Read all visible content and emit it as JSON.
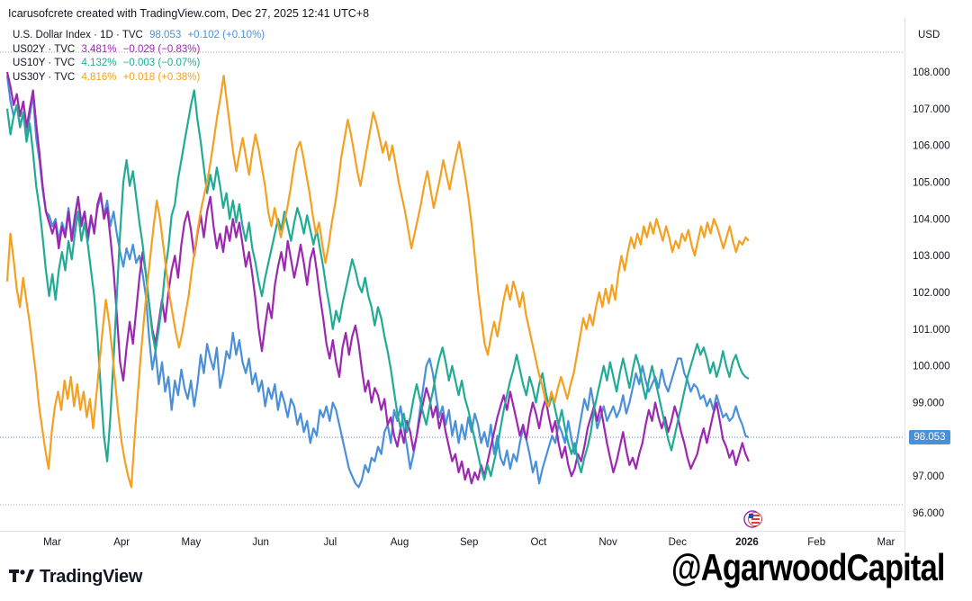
{
  "header": {
    "text": "Icarusofcrete created with TradingView.com, Dec 27, 2025 12:41 UTC+8"
  },
  "legend": [
    {
      "name": "U.S. Dollar Index · 1D · TVC",
      "value": "98.053",
      "change": "+0.102 (+0.10%)",
      "color": "#4a90d9"
    },
    {
      "name": "US02Y · TVC",
      "value": "3.481%",
      "change": "−0.029 (−0.83%)",
      "color": "#9c27b0"
    },
    {
      "name": "US10Y · TVC",
      "value": "4.132%",
      "change": "−0.003 (−0.07%)",
      "color": "#22ab94"
    },
    {
      "name": "US30Y · TVC",
      "value": "4.816%",
      "change": "+0.018 (+0.38%)",
      "color": "#f4a020"
    }
  ],
  "axis": {
    "currency": "USD",
    "price_label": "98.053"
  },
  "branding": {
    "logo_text": "TradingView",
    "watermark": "@AgarwoodCapital"
  },
  "chart_data": {
    "type": "line",
    "x_labels": [
      "Mar",
      "Apr",
      "May",
      "Jun",
      "Jul",
      "Aug",
      "Sep",
      "Oct",
      "Nov",
      "Dec",
      "2026",
      "Feb",
      "Mar"
    ],
    "y_ticks": [
      "108.000",
      "107.000",
      "106.000",
      "105.000",
      "104.000",
      "103.000",
      "102.000",
      "101.000",
      "100.000",
      "99.000",
      "98.000",
      "97.000",
      "96.000"
    ],
    "ylim": [
      96,
      108
    ],
    "grid": false,
    "legend_position": "top-left",
    "series": [
      {
        "name": "U.S. Dollar Index · 1D · TVC",
        "color": "#4a90d9",
        "values": [
          107.9,
          107.2,
          106.8,
          107.1,
          106.5,
          106.9,
          106.3,
          106.8,
          107.4,
          106.2,
          105.6,
          104.8,
          104.2,
          104.1,
          103.8,
          104.0,
          103.4,
          103.9,
          103.6,
          104.3,
          103.5,
          104.1,
          104.6,
          103.9,
          104.2,
          103.4,
          104.0,
          103.7,
          104.3,
          104.6,
          104.1,
          104.5,
          103.8,
          104.2,
          103.6,
          103.1,
          102.7,
          103.2,
          102.9,
          103.3,
          102.8,
          103.0,
          102.5,
          101.9,
          100.8,
          99.9,
          100.4,
          99.5,
          100.1,
          99.3,
          99.7,
          98.8,
          99.6,
          99.2,
          99.9,
          99.4,
          99.1,
          99.6,
          98.9,
          99.5,
          100.3,
          99.8,
          100.6,
          100.2,
          99.9,
          100.5,
          99.4,
          99.8,
          100.4,
          100.2,
          100.9,
          100.3,
          100.7,
          100.1,
          99.8,
          100.2,
          99.5,
          99.8,
          99.3,
          99.6,
          98.9,
          99.4,
          99.1,
          99.5,
          98.8,
          99.3,
          99.0,
          98.6,
          99.1,
          98.9,
          98.4,
          98.7,
          98.2,
          98.5,
          97.9,
          98.3,
          98.1,
          98.8,
          98.6,
          98.9,
          98.5,
          99.0,
          98.8,
          98.4,
          98.0,
          97.6,
          97.2,
          97.0,
          96.8,
          96.7,
          96.9,
          97.3,
          97.1,
          97.5,
          97.4,
          97.8,
          97.6,
          98.2,
          98.4,
          97.9,
          98.8,
          98.5,
          98.9,
          98.3,
          97.8,
          97.2,
          97.6,
          98.1,
          98.8,
          99.4,
          100.0,
          100.2,
          99.8,
          99.2,
          98.6,
          98.9,
          98.4,
          98.8,
          98.1,
          98.5,
          97.9,
          98.4,
          98.0,
          98.6,
          98.2,
          98.7,
          98.4,
          97.9,
          98.2,
          97.8,
          98.4,
          97.6,
          98.1,
          97.5,
          97.3,
          97.7,
          97.2,
          97.6,
          97.4,
          97.9,
          98.3,
          98.0,
          97.6,
          97.1,
          97.4,
          96.8,
          97.2,
          97.5,
          97.8,
          98.1,
          97.9,
          98.4,
          98.2,
          97.9,
          98.5,
          98.0,
          97.6,
          98.1,
          98.6,
          99.1,
          98.8,
          99.4,
          98.9,
          98.3,
          98.6,
          98.9,
          98.5,
          98.7,
          98.9,
          98.6,
          98.8,
          99.2,
          98.7,
          99.0,
          99.4,
          99.8,
          99.5,
          100.0,
          99.6,
          99.3,
          99.5,
          99.7,
          99.4,
          99.9,
          99.5,
          99.3,
          99.6,
          99.9,
          100.2,
          100.2,
          99.8,
          99.6,
          99.3,
          99.5,
          99.4,
          99.1,
          99.2,
          98.9,
          99.1,
          98.8,
          99.2,
          98.9,
          98.6,
          98.7,
          98.5,
          98.6,
          98.9,
          98.6,
          98.4,
          98.1,
          98.05
        ]
      },
      {
        "name": "US02Y · TVC",
        "color": "#9c27b0",
        "values": [
          108.0,
          107.6,
          107.1,
          107.4,
          106.8,
          107.2,
          106.5,
          107.0,
          107.5,
          106.6,
          105.8,
          104.9,
          104.2,
          103.9,
          103.6,
          103.9,
          103.2,
          103.8,
          103.5,
          104.2,
          103.4,
          104.0,
          104.6,
          103.8,
          104.2,
          103.5,
          104.1,
          103.6,
          104.4,
          104.7,
          104.0,
          104.3,
          103.5,
          102.6,
          101.4,
          100.1,
          99.6,
          100.5,
          101.2,
          100.6,
          101.5,
          102.4,
          103.1,
          102.5,
          101.7,
          101.0,
          100.6,
          101.2,
          101.8,
          101.2,
          102.0,
          102.6,
          103.0,
          102.4,
          103.3,
          103.9,
          104.2,
          103.7,
          103.0,
          103.6,
          104.1,
          103.5,
          104.2,
          104.6,
          103.8,
          103.2,
          103.6,
          103.1,
          103.8,
          103.4,
          104.0,
          103.5,
          103.9,
          103.3,
          102.7,
          103.1,
          102.5,
          101.8,
          101.0,
          100.4,
          101.1,
          101.7,
          101.3,
          102.2,
          102.7,
          103.1,
          102.6,
          103.4,
          102.9,
          102.4,
          102.8,
          103.3,
          102.8,
          102.2,
          102.9,
          103.2,
          102.6,
          101.9,
          101.3,
          100.6,
          100.2,
          100.7,
          100.1,
          99.7,
          100.5,
          100.9,
          100.3,
          100.8,
          101.1,
          100.6,
          99.9,
          99.3,
          99.6,
          99.0,
          99.4,
          99.2,
          98.8,
          99.1,
          98.4,
          98.6,
          98.1,
          97.8,
          98.3,
          97.9,
          98.5,
          98.2,
          97.7,
          98.1,
          98.6,
          99.0,
          99.4,
          99.1,
          98.6,
          98.9,
          98.3,
          98.7,
          98.2,
          97.8,
          97.4,
          97.6,
          97.1,
          97.4,
          96.9,
          97.2,
          96.8,
          97.1,
          96.9,
          97.3,
          97.0,
          97.4,
          97.8,
          98.2,
          98.6,
          98.9,
          99.2,
          98.8,
          99.3,
          98.9,
          98.5,
          98.1,
          98.4,
          98.0,
          98.6,
          99.0,
          98.7,
          98.3,
          98.8,
          99.1,
          98.6,
          98.2,
          98.5,
          97.9,
          97.5,
          97.8,
          97.3,
          97.0,
          97.2,
          97.6,
          97.4,
          97.8,
          98.3,
          98.6,
          98.9,
          98.5,
          98.9,
          98.4,
          97.9,
          97.5,
          97.1,
          97.4,
          97.8,
          98.2,
          97.7,
          97.3,
          97.5,
          97.2,
          97.6,
          97.9,
          98.4,
          98.8,
          98.5,
          99.0,
          98.6,
          98.3,
          98.6,
          98.2,
          98.5,
          98.9,
          98.6,
          98.2,
          97.9,
          97.5,
          97.2,
          97.4,
          97.6,
          98.0,
          98.3,
          97.9,
          98.3,
          98.7,
          99.0,
          98.5,
          98.0,
          97.8,
          97.5,
          97.7,
          97.3,
          97.6,
          97.9,
          97.6,
          97.4
        ]
      },
      {
        "name": "US10Y · TVC",
        "color": "#22ab94",
        "values": [
          107.0,
          106.3,
          106.8,
          107.1,
          106.5,
          106.9,
          106.1,
          106.6,
          105.8,
          104.9,
          104.3,
          103.5,
          102.6,
          101.9,
          102.5,
          101.8,
          102.6,
          103.1,
          102.6,
          103.4,
          102.9,
          103.6,
          104.2,
          103.4,
          103.9,
          103.3,
          102.6,
          101.9,
          100.8,
          99.4,
          98.1,
          97.4,
          98.6,
          100.2,
          101.9,
          103.6,
          105.0,
          105.6,
          104.9,
          105.3,
          104.6,
          103.9,
          103.3,
          102.5,
          101.7,
          100.9,
          100.4,
          101.0,
          101.7,
          102.6,
          103.2,
          104.1,
          104.4,
          105.1,
          105.6,
          106.1,
          106.6,
          107.1,
          107.5,
          106.7,
          106.1,
          105.4,
          104.7,
          105.2,
          104.8,
          105.4,
          104.9,
          104.3,
          104.7,
          104.0,
          104.5,
          103.9,
          104.4,
          103.8,
          103.4,
          103.9,
          103.2,
          102.8,
          102.3,
          101.9,
          102.4,
          102.8,
          103.2,
          103.6,
          104.0,
          103.7,
          104.2,
          103.8,
          103.4,
          103.9,
          104.3,
          104.0,
          103.6,
          104.1,
          103.7,
          103.3,
          103.7,
          103.2,
          102.7,
          102.1,
          101.6,
          101.0,
          101.5,
          101.2,
          101.7,
          102.1,
          102.5,
          102.9,
          102.6,
          102.2,
          102.0,
          102.4,
          101.9,
          101.6,
          101.1,
          101.6,
          101.3,
          100.8,
          100.4,
          99.9,
          99.3,
          98.7,
          98.3,
          98.7,
          98.2,
          98.6,
          99.1,
          99.5,
          99.1,
          98.7,
          98.4,
          98.9,
          99.3,
          99.8,
          100.2,
          100.5,
          100.1,
          99.6,
          100.0,
          99.6,
          99.2,
          99.6,
          99.1,
          98.8,
          98.4,
          98.0,
          97.6,
          97.2,
          96.9,
          97.3,
          97.0,
          97.4,
          97.8,
          98.3,
          98.8,
          99.2,
          99.6,
          99.9,
          100.3,
          99.9,
          99.5,
          99.2,
          99.7,
          99.4,
          99.0,
          99.5,
          99.8,
          99.3,
          98.9,
          99.2,
          98.8,
          98.4,
          98.8,
          98.3,
          97.9,
          97.6,
          97.9,
          97.4,
          97.1,
          97.5,
          97.8,
          98.2,
          98.8,
          99.2,
          99.6,
          100.0,
          99.6,
          100.1,
          99.7,
          99.3,
          99.8,
          100.2,
          99.8,
          99.4,
          99.9,
          100.3,
          100.0,
          99.5,
          99.1,
          99.6,
          100.0,
          99.6,
          99.2,
          98.8,
          98.4,
          98.0,
          97.7,
          98.1,
          98.5,
          98.9,
          99.3,
          99.7,
          100.0,
          100.3,
          100.6,
          100.3,
          100.5,
          100.2,
          99.8,
          100.1,
          99.7,
          100.0,
          100.4,
          100.0,
          99.7,
          100.1,
          100.3,
          100.0,
          99.8,
          99.7,
          99.65
        ]
      },
      {
        "name": "US30Y · TVC",
        "color": "#f4a020",
        "values": [
          102.3,
          103.6,
          102.9,
          102.1,
          101.6,
          102.4,
          101.8,
          101.2,
          100.5,
          99.8,
          98.9,
          98.3,
          97.7,
          97.2,
          98.2,
          98.9,
          99.3,
          98.8,
          99.6,
          99.1,
          99.7,
          98.9,
          99.5,
          98.8,
          99.3,
          98.6,
          99.1,
          98.3,
          99.2,
          100.1,
          101.0,
          101.8,
          101.2,
          100.4,
          99.5,
          98.6,
          97.9,
          97.4,
          97.0,
          96.7,
          98.0,
          99.2,
          100.3,
          101.3,
          102.2,
          103.0,
          103.8,
          104.5,
          104.0,
          103.3,
          102.6,
          101.9,
          101.4,
          100.9,
          100.5,
          100.9,
          101.4,
          101.9,
          102.6,
          103.2,
          103.8,
          104.3,
          104.7,
          105.1,
          105.6,
          106.2,
          106.8,
          107.3,
          107.9,
          107.2,
          106.5,
          105.8,
          105.3,
          105.8,
          106.2,
          105.7,
          105.2,
          105.8,
          106.3,
          105.9,
          105.4,
          104.9,
          104.2,
          103.8,
          104.3,
          103.9,
          103.5,
          103.9,
          104.3,
          104.8,
          105.4,
          105.9,
          106.1,
          105.7,
          105.2,
          104.7,
          104.1,
          103.6,
          103.9,
          103.3,
          102.8,
          103.3,
          103.9,
          104.4,
          105.0,
          105.7,
          106.2,
          106.7,
          106.3,
          105.8,
          105.3,
          104.9,
          105.4,
          105.9,
          106.4,
          106.9,
          106.6,
          106.2,
          105.8,
          106.1,
          105.6,
          106.0,
          105.5,
          105.0,
          104.6,
          104.2,
          103.7,
          103.2,
          103.6,
          104.0,
          104.4,
          104.9,
          105.3,
          104.8,
          104.3,
          104.7,
          105.1,
          105.6,
          105.2,
          104.8,
          105.3,
          105.7,
          106.1,
          105.6,
          105.1,
          104.5,
          103.8,
          102.9,
          102.0,
          101.3,
          100.6,
          100.3,
          100.8,
          101.2,
          100.8,
          101.3,
          101.8,
          102.2,
          101.8,
          102.3,
          102.0,
          101.6,
          102.0,
          101.4,
          101.0,
          100.6,
          100.2,
          99.8,
          99.5,
          99.1,
          98.9,
          99.3,
          99.0,
          99.4,
          99.7,
          99.4,
          99.1,
          99.5,
          99.8,
          100.3,
          100.8,
          101.3,
          101.0,
          101.4,
          101.1,
          101.6,
          102.0,
          101.6,
          102.1,
          101.7,
          102.2,
          101.8,
          102.5,
          103.0,
          102.6,
          103.1,
          103.5,
          103.2,
          103.6,
          103.3,
          103.8,
          103.5,
          103.9,
          103.6,
          104.0,
          103.7,
          103.4,
          103.8,
          103.5,
          103.1,
          103.4,
          103.2,
          103.6,
          103.4,
          103.7,
          103.3,
          103.0,
          103.4,
          103.8,
          103.5,
          103.9,
          103.6,
          104.0,
          103.8,
          103.5,
          103.2,
          103.5,
          103.8,
          103.4,
          103.1,
          103.4,
          103.3,
          103.5,
          103.4
        ]
      }
    ]
  }
}
